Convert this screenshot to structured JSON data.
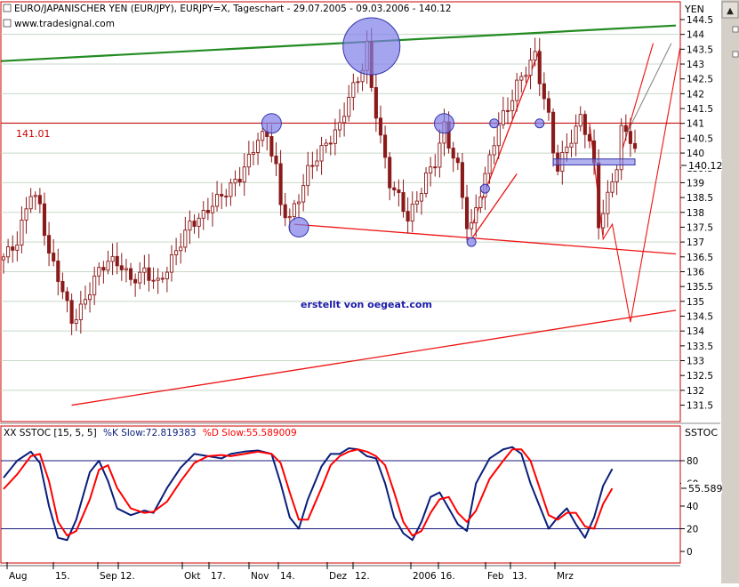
{
  "header": {
    "title": "EURO/JAPANISCHER YEN (EUR/JPY), EURJPY=X, Tageschart - 29.07.2005 - 09.03.2006 - 140.12",
    "source": "www.tradesignal.com",
    "unit": "YEN"
  },
  "annotations": {
    "watermark": "erstellt von oegeat.com",
    "level_label": "141.01",
    "last_price_label": "140.12"
  },
  "stoch_panel": {
    "label_prefix": "XX SSTOC [15, 5, 5]",
    "k_label": "%K Slow:72.819383",
    "d_label": "%D Slow:55.589009",
    "unit": "SSTOC",
    "last_label": "55.589"
  },
  "colors": {
    "candle": "#8b1a1a",
    "k_line": "#0a1f7a",
    "d_line": "#ff0000",
    "green_trend": "#228b22",
    "red_lines": "#ee1111",
    "circles": "#7f7fe8",
    "grid": "#c8d8c8",
    "chrome": "#d4d0c8"
  },
  "chart_data": [
    {
      "type": "candlestick",
      "title": "EURO/JAPANISCHER YEN (EUR/JPY), EURJPY=X, Tageschart - 29.07.2005 - 09.03.2006 - 140.12",
      "ylabel": "YEN",
      "ylim": [
        131.2,
        145.3
      ],
      "yticks": [
        131.5,
        132,
        132.5,
        133,
        133.5,
        134,
        134.5,
        135,
        135.5,
        136,
        136.5,
        137,
        137.5,
        138,
        138.5,
        139,
        139.5,
        140,
        140.5,
        141,
        141.5,
        142,
        142.5,
        143,
        143.5,
        144,
        144.5
      ],
      "xticks": [
        "Aug",
        "15.",
        "Sep",
        "12.",
        "Okt",
        "17.",
        "Nov",
        "14.",
        "Dez",
        "12.",
        "2006",
        "16.",
        "Feb",
        "13.",
        "Mrz"
      ],
      "close_path": [
        [
          0,
          136.5
        ],
        [
          3,
          137.0
        ],
        [
          6,
          138.7
        ],
        [
          8,
          138.2
        ],
        [
          10,
          136.6
        ],
        [
          13,
          135.4
        ],
        [
          15,
          134.3
        ],
        [
          18,
          135.0
        ],
        [
          20,
          135.8
        ],
        [
          23,
          136.4
        ],
        [
          26,
          136.2
        ],
        [
          28,
          135.7
        ],
        [
          31,
          136.0
        ],
        [
          34,
          135.6
        ],
        [
          36,
          136.1
        ],
        [
          38,
          136.7
        ],
        [
          41,
          137.6
        ],
        [
          44,
          137.9
        ],
        [
          46,
          138.3
        ],
        [
          49,
          138.7
        ],
        [
          52,
          139.2
        ],
        [
          54,
          139.8
        ],
        [
          56,
          140.5
        ],
        [
          58,
          140.6
        ],
        [
          60,
          139.5
        ],
        [
          61,
          138.2
        ],
        [
          63,
          137.8
        ],
        [
          65,
          138.5
        ],
        [
          67,
          139.4
        ],
        [
          70,
          140.1
        ],
        [
          72,
          140.5
        ],
        [
          74,
          140.9
        ],
        [
          76,
          141.9
        ],
        [
          78,
          142.5
        ],
        [
          79,
          142.9
        ],
        [
          80,
          143.6
        ],
        [
          81,
          142.2
        ],
        [
          83,
          140.5
        ],
        [
          85,
          139.0
        ],
        [
          87,
          138.5
        ],
        [
          89,
          137.8
        ],
        [
          91,
          138.4
        ],
        [
          93,
          139.2
        ],
        [
          95,
          139.7
        ],
        [
          97,
          140.9
        ],
        [
          98,
          140.3
        ],
        [
          100,
          139.5
        ],
        [
          102,
          137.6
        ],
        [
          103,
          137.5
        ],
        [
          105,
          138.7
        ],
        [
          107,
          139.8
        ],
        [
          109,
          141.0
        ],
        [
          111,
          141.5
        ],
        [
          113,
          142.3
        ],
        [
          115,
          142.8
        ],
        [
          117,
          143.3
        ],
        [
          118,
          142.5
        ],
        [
          120,
          141.2
        ],
        [
          121,
          140.1
        ],
        [
          122,
          139.5
        ],
        [
          124,
          140.2
        ],
        [
          126,
          140.8
        ],
        [
          127,
          141.2
        ],
        [
          129,
          140.4
        ],
        [
          130,
          139.5
        ],
        [
          131,
          137.6
        ],
        [
          133,
          138.5
        ],
        [
          135,
          139.6
        ],
        [
          136,
          140.8
        ],
        [
          138,
          140.5
        ],
        [
          139,
          140.12
        ]
      ],
      "horizontal_level": 141.01,
      "last_value": 140.12,
      "trend_lines": [
        {
          "color": "green",
          "from": [
            -0.5,
            143.1
          ],
          "to": [
            148,
            144.3
          ]
        },
        {
          "color": "red",
          "from": [
            64,
            137.6
          ],
          "to": [
            148,
            136.6
          ]
        },
        {
          "color": "red",
          "from": [
            15,
            131.5
          ],
          "to": [
            148,
            134.7
          ]
        },
        {
          "color": "red",
          "from": [
            103,
            137.5
          ],
          "to": [
            118,
            143.5
          ]
        },
        {
          "color": "red",
          "from": [
            103,
            137.1
          ],
          "to": [
            113,
            139.3
          ]
        }
      ],
      "projection_lines": [
        {
          "color": "red",
          "points": [
            [
              129,
              141.0
            ],
            [
              132,
              137.1
            ],
            [
              134,
              137.6
            ],
            [
              138,
              134.3
            ],
            [
              149,
              143.6
            ]
          ]
        },
        {
          "color": "red",
          "points": [
            [
              136,
              140.0
            ],
            [
              143,
              143.7
            ]
          ]
        },
        {
          "color": "gray",
          "points": [
            [
              137,
              140.6
            ],
            [
              147,
              143.7
            ]
          ]
        }
      ],
      "highlight_box": [
        121,
        139.6,
        139,
        139.8
      ],
      "circles": [
        {
          "x": 59,
          "y": 141.0,
          "size": "small"
        },
        {
          "x": 81,
          "y": 143.6,
          "size": "large"
        },
        {
          "x": 97,
          "y": 141.0,
          "size": "small"
        },
        {
          "x": 65,
          "y": 137.5,
          "size": "small"
        },
        {
          "x": 108,
          "y": 141.0,
          "size": "tiny"
        },
        {
          "x": 118,
          "y": 141.0,
          "size": "tiny"
        },
        {
          "x": 106,
          "y": 138.8,
          "size": "tiny"
        },
        {
          "x": 103,
          "y": 137.0,
          "size": "tiny"
        }
      ],
      "grid": true
    },
    {
      "type": "line",
      "title": "XX SSTOC [15, 5, 5]",
      "ylabel": "SSTOC",
      "ylim": [
        -7,
        95
      ],
      "yticks": [
        0,
        20,
        40,
        60,
        80
      ],
      "reference_lines": [
        20,
        80
      ],
      "series": [
        {
          "name": "%K Slow",
          "color": "#0a1f7a",
          "points": [
            [
              0,
              65
            ],
            [
              3,
              80
            ],
            [
              6,
              88
            ],
            [
              8,
              78
            ],
            [
              10,
              40
            ],
            [
              12,
              12
            ],
            [
              14,
              10
            ],
            [
              16,
              28
            ],
            [
              19,
              70
            ],
            [
              21,
              80
            ],
            [
              23,
              62
            ],
            [
              25,
              38
            ],
            [
              28,
              32
            ],
            [
              31,
              36
            ],
            [
              33,
              34
            ],
            [
              36,
              56
            ],
            [
              39,
              74
            ],
            [
              42,
              86
            ],
            [
              45,
              84
            ],
            [
              48,
              82
            ],
            [
              50,
              86
            ],
            [
              53,
              88
            ],
            [
              56,
              89
            ],
            [
              59,
              86
            ],
            [
              61,
              60
            ],
            [
              63,
              30
            ],
            [
              65,
              20
            ],
            [
              67,
              46
            ],
            [
              70,
              75
            ],
            [
              72,
              86
            ],
            [
              74,
              86
            ],
            [
              76,
              91
            ],
            [
              78,
              90
            ],
            [
              80,
              84
            ],
            [
              82,
              82
            ],
            [
              84,
              60
            ],
            [
              86,
              30
            ],
            [
              88,
              16
            ],
            [
              90,
              10
            ],
            [
              92,
              26
            ],
            [
              94,
              48
            ],
            [
              96,
              52
            ],
            [
              98,
              38
            ],
            [
              100,
              24
            ],
            [
              102,
              18
            ],
            [
              104,
              60
            ],
            [
              107,
              82
            ],
            [
              110,
              90
            ],
            [
              112,
              92
            ],
            [
              114,
              86
            ],
            [
              116,
              60
            ],
            [
              118,
              40
            ],
            [
              120,
              20
            ],
            [
              122,
              30
            ],
            [
              124,
              38
            ],
            [
              126,
              24
            ],
            [
              128,
              12
            ],
            [
              130,
              30
            ],
            [
              132,
              58
            ],
            [
              134,
              72.8
            ]
          ]
        },
        {
          "name": "%D Slow",
          "color": "#ff0000",
          "points": [
            [
              0,
              55
            ],
            [
              3,
              68
            ],
            [
              6,
              84
            ],
            [
              8,
              86
            ],
            [
              10,
              62
            ],
            [
              12,
              26
            ],
            [
              14,
              14
            ],
            [
              16,
              18
            ],
            [
              19,
              46
            ],
            [
              21,
              72
            ],
            [
              23,
              76
            ],
            [
              25,
              56
            ],
            [
              28,
              38
            ],
            [
              31,
              34
            ],
            [
              33,
              35
            ],
            [
              36,
              44
            ],
            [
              39,
              62
            ],
            [
              42,
              78
            ],
            [
              45,
              84
            ],
            [
              48,
              85
            ],
            [
              50,
              84
            ],
            [
              53,
              86
            ],
            [
              56,
              88
            ],
            [
              59,
              86
            ],
            [
              61,
              78
            ],
            [
              63,
              52
            ],
            [
              65,
              28
            ],
            [
              67,
              28
            ],
            [
              70,
              56
            ],
            [
              72,
              76
            ],
            [
              74,
              84
            ],
            [
              76,
              88
            ],
            [
              78,
              90
            ],
            [
              80,
              88
            ],
            [
              82,
              84
            ],
            [
              84,
              76
            ],
            [
              86,
              52
            ],
            [
              88,
              26
            ],
            [
              90,
              14
            ],
            [
              92,
              18
            ],
            [
              94,
              34
            ],
            [
              96,
              46
            ],
            [
              98,
              48
            ],
            [
              100,
              34
            ],
            [
              102,
              26
            ],
            [
              104,
              36
            ],
            [
              107,
              64
            ],
            [
              110,
              80
            ],
            [
              112,
              90
            ],
            [
              114,
              90
            ],
            [
              116,
              80
            ],
            [
              118,
              56
            ],
            [
              120,
              32
            ],
            [
              122,
              28
            ],
            [
              124,
              34
            ],
            [
              126,
              34
            ],
            [
              128,
              22
            ],
            [
              130,
              20
            ],
            [
              132,
              42
            ],
            [
              134,
              55.6
            ]
          ]
        }
      ]
    }
  ]
}
